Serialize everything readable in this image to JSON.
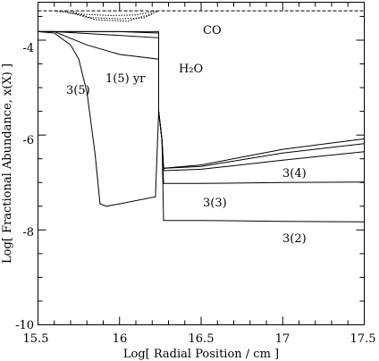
{
  "chart_data": {
    "type": "line",
    "xlabel": "Log[ Radial Position / cm ]",
    "ylabel": "Log[ Fractional Abundance, x(X) ]",
    "xlim": [
      15.5,
      17.5
    ],
    "ylim": [
      -10,
      -3.2
    ],
    "x_ticks": [
      "15.5",
      "16",
      "16.5",
      "17",
      "17.5"
    ],
    "y_ticks": [
      "-4",
      "-6",
      "-8",
      "-10"
    ],
    "annotations": {
      "co": "CO",
      "h2o": "H₂O",
      "t1e5": "1(5)  yr",
      "t3e5": "3(5)",
      "t3e4": "3(4)",
      "t3e3": "3(3)",
      "t3e2": "3(2)"
    },
    "series": [
      {
        "id": "co",
        "style": "dashed",
        "x": [
          15.5,
          16.0,
          16.5,
          17.0,
          17.5
        ],
        "y": [
          -3.38,
          -3.38,
          -3.38,
          -3.38,
          -3.38
        ]
      },
      {
        "id": "co_inner_a",
        "style": "dotted",
        "x": [
          15.6,
          15.75,
          15.95,
          16.1,
          16.23
        ],
        "y": [
          -3.38,
          -3.45,
          -3.48,
          -3.47,
          -3.38
        ]
      },
      {
        "id": "co_inner_b",
        "style": "dotted",
        "x": [
          15.66,
          15.8,
          16.0,
          16.15,
          16.23
        ],
        "y": [
          -3.38,
          -3.52,
          -3.55,
          -3.53,
          -3.4
        ]
      },
      {
        "id": "co_inner_c",
        "style": "dotted",
        "x": [
          15.7,
          15.85,
          16.05,
          16.2
        ],
        "y": [
          -3.38,
          -3.57,
          -3.6,
          -3.44
        ]
      },
      {
        "id": "h2o_3e2",
        "style": "solid",
        "x": [
          15.5,
          15.6,
          16.0,
          16.24,
          16.24,
          16.26,
          16.27,
          16.5,
          17.0,
          17.5
        ],
        "y": [
          -3.82,
          -3.82,
          -3.82,
          -3.82,
          -5.5,
          -6.1,
          -7.8,
          -7.8,
          -7.82,
          -7.83
        ]
      },
      {
        "id": "h2o_3e3",
        "style": "solid",
        "x": [
          15.5,
          15.6,
          16.0,
          16.24,
          16.24,
          16.26,
          16.27,
          16.5,
          17.0,
          17.5
        ],
        "y": [
          -3.82,
          -3.82,
          -3.82,
          -3.85,
          -5.5,
          -6.1,
          -7.02,
          -7.02,
          -7.0,
          -6.99
        ]
      },
      {
        "id": "h2o_3e4",
        "style": "solid",
        "x": [
          15.5,
          15.6,
          15.9,
          16.24,
          16.24,
          16.26,
          16.27,
          16.5,
          17.0,
          17.5
        ],
        "y": [
          -3.82,
          -3.82,
          -3.88,
          -3.95,
          -5.5,
          -6.1,
          -6.75,
          -6.72,
          -6.53,
          -6.35
        ]
      },
      {
        "id": "h2o_1e5",
        "style": "solid",
        "x": [
          15.5,
          15.6,
          15.8,
          16.0,
          16.24,
          16.24,
          16.26,
          16.27,
          16.5,
          17.0,
          17.5
        ],
        "y": [
          -3.82,
          -3.82,
          -4.1,
          -4.3,
          -4.4,
          -5.5,
          -6.1,
          -6.7,
          -6.66,
          -6.38,
          -6.18
        ]
      },
      {
        "id": "h2o_3e5",
        "style": "solid",
        "x": [
          15.5,
          15.6,
          15.7,
          15.75,
          15.8,
          15.85,
          15.88,
          15.92,
          16.0,
          16.22,
          16.24,
          16.26,
          16.27,
          16.5,
          17.0,
          17.5
        ],
        "y": [
          -3.82,
          -3.85,
          -4.1,
          -4.4,
          -5.1,
          -6.4,
          -7.45,
          -7.5,
          -7.45,
          -7.3,
          -5.5,
          -6.1,
          -6.7,
          -6.63,
          -6.3,
          -6.08
        ]
      }
    ]
  }
}
